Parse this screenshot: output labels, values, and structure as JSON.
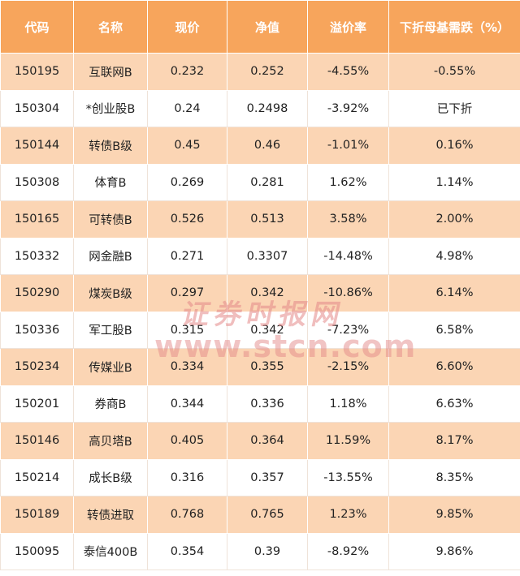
{
  "table": {
    "headers": [
      "代码",
      "名称",
      "现价",
      "净值",
      "溢价率",
      "下折母基需跌（%）"
    ],
    "rows": [
      [
        "150195",
        "互联网B",
        "0.232",
        "0.252",
        "-4.55%",
        "-0.55%"
      ],
      [
        "150304",
        "*创业股B",
        "0.24",
        "0.2498",
        "-3.92%",
        "已下折"
      ],
      [
        "150144",
        "转债B级",
        "0.45",
        "0.46",
        "-1.01%",
        "0.16%"
      ],
      [
        "150308",
        "体育B",
        "0.269",
        "0.281",
        "1.62%",
        "1.14%"
      ],
      [
        "150165",
        "可转债B",
        "0.526",
        "0.513",
        "3.58%",
        "2.00%"
      ],
      [
        "150332",
        "网金融B",
        "0.271",
        "0.3307",
        "-14.48%",
        "4.98%"
      ],
      [
        "150290",
        "煤炭B级",
        "0.297",
        "0.342",
        "-10.86%",
        "6.14%"
      ],
      [
        "150336",
        "军工股B",
        "0.315",
        "0.342",
        "-7.23%",
        "6.58%"
      ],
      [
        "150234",
        "传媒业B",
        "0.334",
        "0.355",
        "-2.15%",
        "6.60%"
      ],
      [
        "150201",
        "券商B",
        "0.344",
        "0.336",
        "1.18%",
        "6.63%"
      ],
      [
        "150146",
        "高贝塔B",
        "0.405",
        "0.364",
        "11.59%",
        "8.17%"
      ],
      [
        "150214",
        "成长B级",
        "0.316",
        "0.357",
        "-13.55%",
        "8.35%"
      ],
      [
        "150189",
        "转债进取",
        "0.768",
        "0.765",
        "1.23%",
        "9.85%"
      ],
      [
        "150095",
        "泰信400B",
        "0.354",
        "0.39",
        "-8.92%",
        "9.86%"
      ]
    ]
  },
  "watermark": {
    "top": "证券时报网",
    "bottom": "www.stcn.com"
  },
  "colors": {
    "header_bg": "#f7a55c",
    "odd_row_bg": "#fbd5b4",
    "even_row_bg": "#ffffff",
    "watermark": "#e58a8a"
  }
}
